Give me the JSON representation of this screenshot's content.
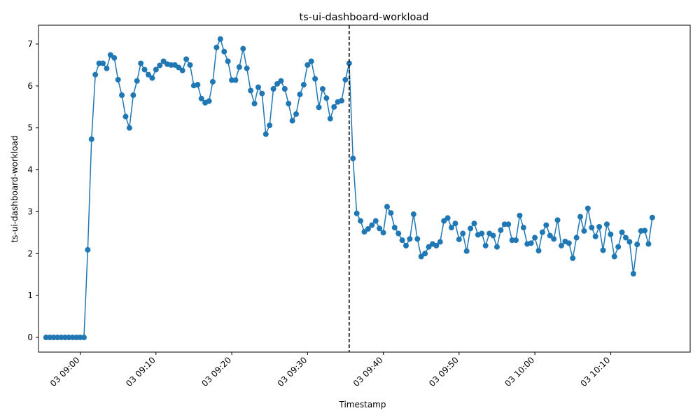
{
  "chart_data": {
    "type": "line",
    "title": "ts-ui-dashboard-workload",
    "xlabel": "Timestamp",
    "ylabel": "ts-ui-dashboard-workload",
    "x_start": "03 08:55:30",
    "x_step_seconds": 30,
    "xlim": [
      "03 08:54:30",
      "03 10:20:30"
    ],
    "ylim": [
      -0.35,
      7.45
    ],
    "x_ticks": [
      "03 09:00",
      "03 09:10",
      "03 09:20",
      "03 09:30",
      "03 09:40",
      "03 09:50",
      "03 10:00",
      "03 10:10"
    ],
    "y_ticks": [
      0,
      1,
      2,
      3,
      4,
      5,
      6,
      7
    ],
    "vline_x": "03 09:35:30",
    "vline_style": "dashed",
    "grid": false,
    "color": "#1f77b4",
    "series": [
      {
        "values": [
          0,
          0,
          0,
          0,
          0,
          0,
          0,
          0,
          0,
          0,
          0,
          2.09,
          4.73,
          6.27,
          6.54,
          6.54,
          6.42,
          6.74,
          6.67,
          6.15,
          5.78,
          5.27,
          5.0,
          5.78,
          6.12,
          6.54,
          6.39,
          6.27,
          6.19,
          6.39,
          6.49,
          6.59,
          6.52,
          6.5,
          6.5,
          6.44,
          6.37,
          6.64,
          6.5,
          6.01,
          6.03,
          5.7,
          5.6,
          5.64,
          6.1,
          6.92,
          7.12,
          6.82,
          6.59,
          6.14,
          6.14,
          6.45,
          6.89,
          6.42,
          5.89,
          5.58,
          5.97,
          5.82,
          4.85,
          5.06,
          5.93,
          6.05,
          6.12,
          5.93,
          5.58,
          5.17,
          5.33,
          5.8,
          6.03,
          6.5,
          6.59,
          6.17,
          5.49,
          5.93,
          5.71,
          5.22,
          5.5,
          5.62,
          5.65,
          6.15,
          6.54,
          4.27,
          2.96,
          2.78,
          2.52,
          2.59,
          2.68,
          2.78,
          2.6,
          2.5,
          3.12,
          2.97,
          2.62,
          2.48,
          2.32,
          2.19,
          2.35,
          2.94,
          2.35,
          1.93,
          2.0,
          2.16,
          2.23,
          2.19,
          2.28,
          2.78,
          2.85,
          2.62,
          2.72,
          2.34,
          2.48,
          2.06,
          2.6,
          2.72,
          2.45,
          2.48,
          2.19,
          2.48,
          2.43,
          2.16,
          2.56,
          2.7,
          2.7,
          2.32,
          2.32,
          2.91,
          2.62,
          2.23,
          2.25,
          2.38,
          2.07,
          2.51,
          2.68,
          2.43,
          2.35,
          2.8,
          2.19,
          2.29,
          2.25,
          1.89,
          2.38,
          2.88,
          2.54,
          3.08,
          2.62,
          2.41,
          2.64,
          2.08,
          2.7,
          2.46,
          1.93,
          2.16,
          2.51,
          2.38,
          2.28,
          1.52,
          2.22,
          2.54,
          2.55,
          2.23,
          2.86
        ]
      }
    ]
  }
}
